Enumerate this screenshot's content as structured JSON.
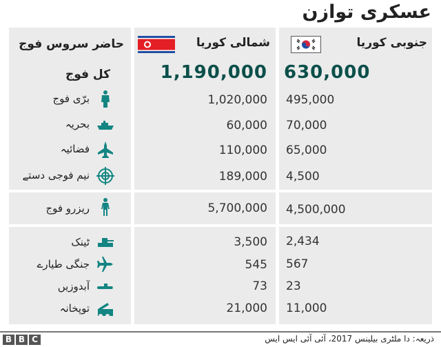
{
  "title": "عسکری توازن",
  "headers": {
    "category": "حاضر سروس فوج",
    "north": "شمالی کوریا",
    "south": "جنوبی کوریا"
  },
  "colors": {
    "cell_bg": "#ebebeb",
    "accent_teal": "#138582",
    "total_number": "#0b4f4a"
  },
  "total": {
    "label": "کل فوج",
    "north": "1,190,000",
    "south": "630,000"
  },
  "rows": [
    {
      "label": "برّی فوج",
      "icon": "soldier-icon",
      "north": "1,020,000",
      "south": "495,000"
    },
    {
      "label": "بحریہ",
      "icon": "ship-icon",
      "north": "60,000",
      "south": "70,000"
    },
    {
      "label": "فضائیہ",
      "icon": "jet-icon",
      "north": "110,000",
      "south": "65,000"
    },
    {
      "label": "نیم فوجی دستے",
      "icon": "crosshair-icon",
      "north": "189,000",
      "south": "4,500"
    },
    {
      "label": "ریزرو فوج",
      "icon": "person-icon",
      "north": "5,700,000",
      "south": "4,500,000"
    },
    {
      "label": "ٹینک",
      "icon": "tank-icon",
      "north": "3,500",
      "south": "2,434"
    },
    {
      "label": "جنگی طیارے",
      "icon": "airplane-icon",
      "north": "545",
      "south": "567"
    },
    {
      "label": "آبدوزیں",
      "icon": "submarine-icon",
      "north": "73",
      "south": "23"
    },
    {
      "label": "توپخانہ",
      "icon": "artillery-icon",
      "north": "21,000",
      "south": "11,000"
    }
  ],
  "footer": {
    "source": "ذریعہ: دا ملٹری بیلینس 2017، آئی آئی ایس ایس",
    "logo": [
      "B",
      "B",
      "C"
    ]
  }
}
